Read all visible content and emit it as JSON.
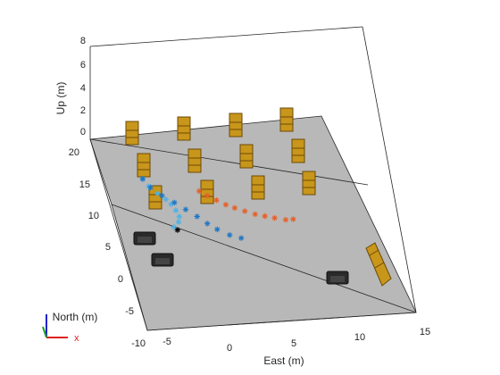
{
  "colors": {
    "ground": "#b8b8b8",
    "box_line": "#262626",
    "traj_light": "#4db3e6",
    "traj_blue": "#1f77c4",
    "traj_orange": "#e6602a",
    "shelf": "#c8961a",
    "shelf_dark": "#6b4a08",
    "pallet": "#2a2a2a",
    "axis_x": "#e02020",
    "axis_y": "#20a020",
    "axis_z": "#2020d0"
  },
  "chart_data": {
    "type": "scatter",
    "title": "",
    "xlabel": "East (m)",
    "ylabel": "North (m)",
    "zlabel": "Up (m)",
    "xlim": [
      -5,
      15
    ],
    "ylim": [
      -10,
      20
    ],
    "zlim": [
      0,
      8
    ],
    "x_ticks": [
      "-5",
      "0",
      "5",
      "10",
      "15"
    ],
    "y_ticks": [
      "-10",
      "-5",
      "0",
      "5",
      "10",
      "15",
      "20"
    ],
    "z_ticks": [
      "0",
      "2",
      "4",
      "6",
      "8"
    ],
    "grid": false,
    "triad_labels": {
      "x": "x"
    },
    "series": [
      {
        "color": "light-blue",
        "marker": "*",
        "points": [
          [
            -1.7,
            13.2
          ],
          [
            -1.4,
            12.0
          ],
          [
            -0.9,
            10.8
          ],
          [
            -0.4,
            9.8
          ],
          [
            -0.1,
            9.0
          ],
          [
            0.1,
            8.0
          ],
          [
            0.2,
            7.0
          ],
          [
            0.0,
            6.2
          ],
          [
            -0.5,
            5.5
          ]
        ]
      },
      {
        "color": "blue",
        "marker": "*",
        "points": [
          [
            -1.7,
            13.2
          ],
          [
            -1.3,
            11.8
          ],
          [
            -0.6,
            10.4
          ],
          [
            0.2,
            9.2
          ],
          [
            0.9,
            8.0
          ],
          [
            1.6,
            6.8
          ],
          [
            2.2,
            5.6
          ],
          [
            2.8,
            4.6
          ],
          [
            3.6,
            3.6
          ],
          [
            4.4,
            3.0
          ]
        ]
      },
      {
        "color": "orange",
        "marker": "*",
        "points": [
          [
            2.5,
            10.6
          ],
          [
            3.0,
            9.8
          ],
          [
            3.6,
            9.0
          ],
          [
            4.2,
            8.2
          ],
          [
            4.8,
            7.6
          ],
          [
            5.5,
            7.0
          ],
          [
            6.2,
            6.4
          ],
          [
            6.9,
            6.0
          ],
          [
            7.6,
            5.6
          ],
          [
            8.4,
            5.2
          ],
          [
            9.0,
            5.2
          ]
        ]
      },
      {
        "color": "black",
        "marker": "*",
        "points": [
          [
            -0.3,
            5.0
          ]
        ]
      }
    ]
  }
}
